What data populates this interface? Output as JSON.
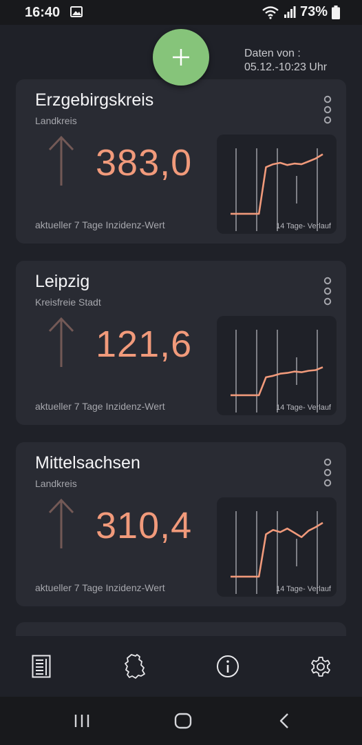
{
  "status_bar": {
    "time": "16:40",
    "battery": "73%"
  },
  "header": {
    "data_line1": "Daten von :",
    "data_line2": "05.12.-10:23 Uhr"
  },
  "fab": {
    "icon": "plus-icon",
    "color": "#86c47a"
  },
  "colors": {
    "accent": "#f19a7b",
    "background": "#1f2128",
    "card": "#292b33"
  },
  "cards": [
    {
      "title": "Erzgebirgskreis",
      "subtitle": "Landkreis",
      "value": "383,0",
      "trend": "up",
      "caption": "aktueller 7 Tage Inzidenz-Wert",
      "chart_label": "14 Tage- Verlauf",
      "chart_points": [
        0.03,
        0.03,
        0.03,
        0.03,
        0.03,
        0.68,
        0.72,
        0.74,
        0.71,
        0.73,
        0.72,
        0.76,
        0.8,
        0.86
      ]
    },
    {
      "title": "Leipzig",
      "subtitle": "Kreisfreie Stadt",
      "value": "121,6",
      "trend": "up",
      "caption": "aktueller 7 Tage Inzidenz-Wert",
      "chart_label": "14 Tage- Verlauf",
      "chart_points": [
        0.03,
        0.03,
        0.03,
        0.03,
        0.03,
        0.28,
        0.3,
        0.33,
        0.34,
        0.36,
        0.35,
        0.37,
        0.38,
        0.42
      ]
    },
    {
      "title": "Mittelsachsen",
      "subtitle": "Landkreis",
      "value": "310,4",
      "trend": "up",
      "caption": "aktueller 7 Tage Inzidenz-Wert",
      "chart_label": "14 Tage- Verlauf",
      "chart_points": [
        0.03,
        0.03,
        0.03,
        0.03,
        0.03,
        0.62,
        0.68,
        0.65,
        0.7,
        0.64,
        0.58,
        0.67,
        0.72,
        0.78
      ]
    }
  ],
  "bottom_nav": [
    "list-icon",
    "germany-map-icon",
    "info-icon",
    "settings-gear-icon"
  ],
  "system_nav": [
    "recent-apps-icon",
    "home-icon",
    "back-icon"
  ]
}
